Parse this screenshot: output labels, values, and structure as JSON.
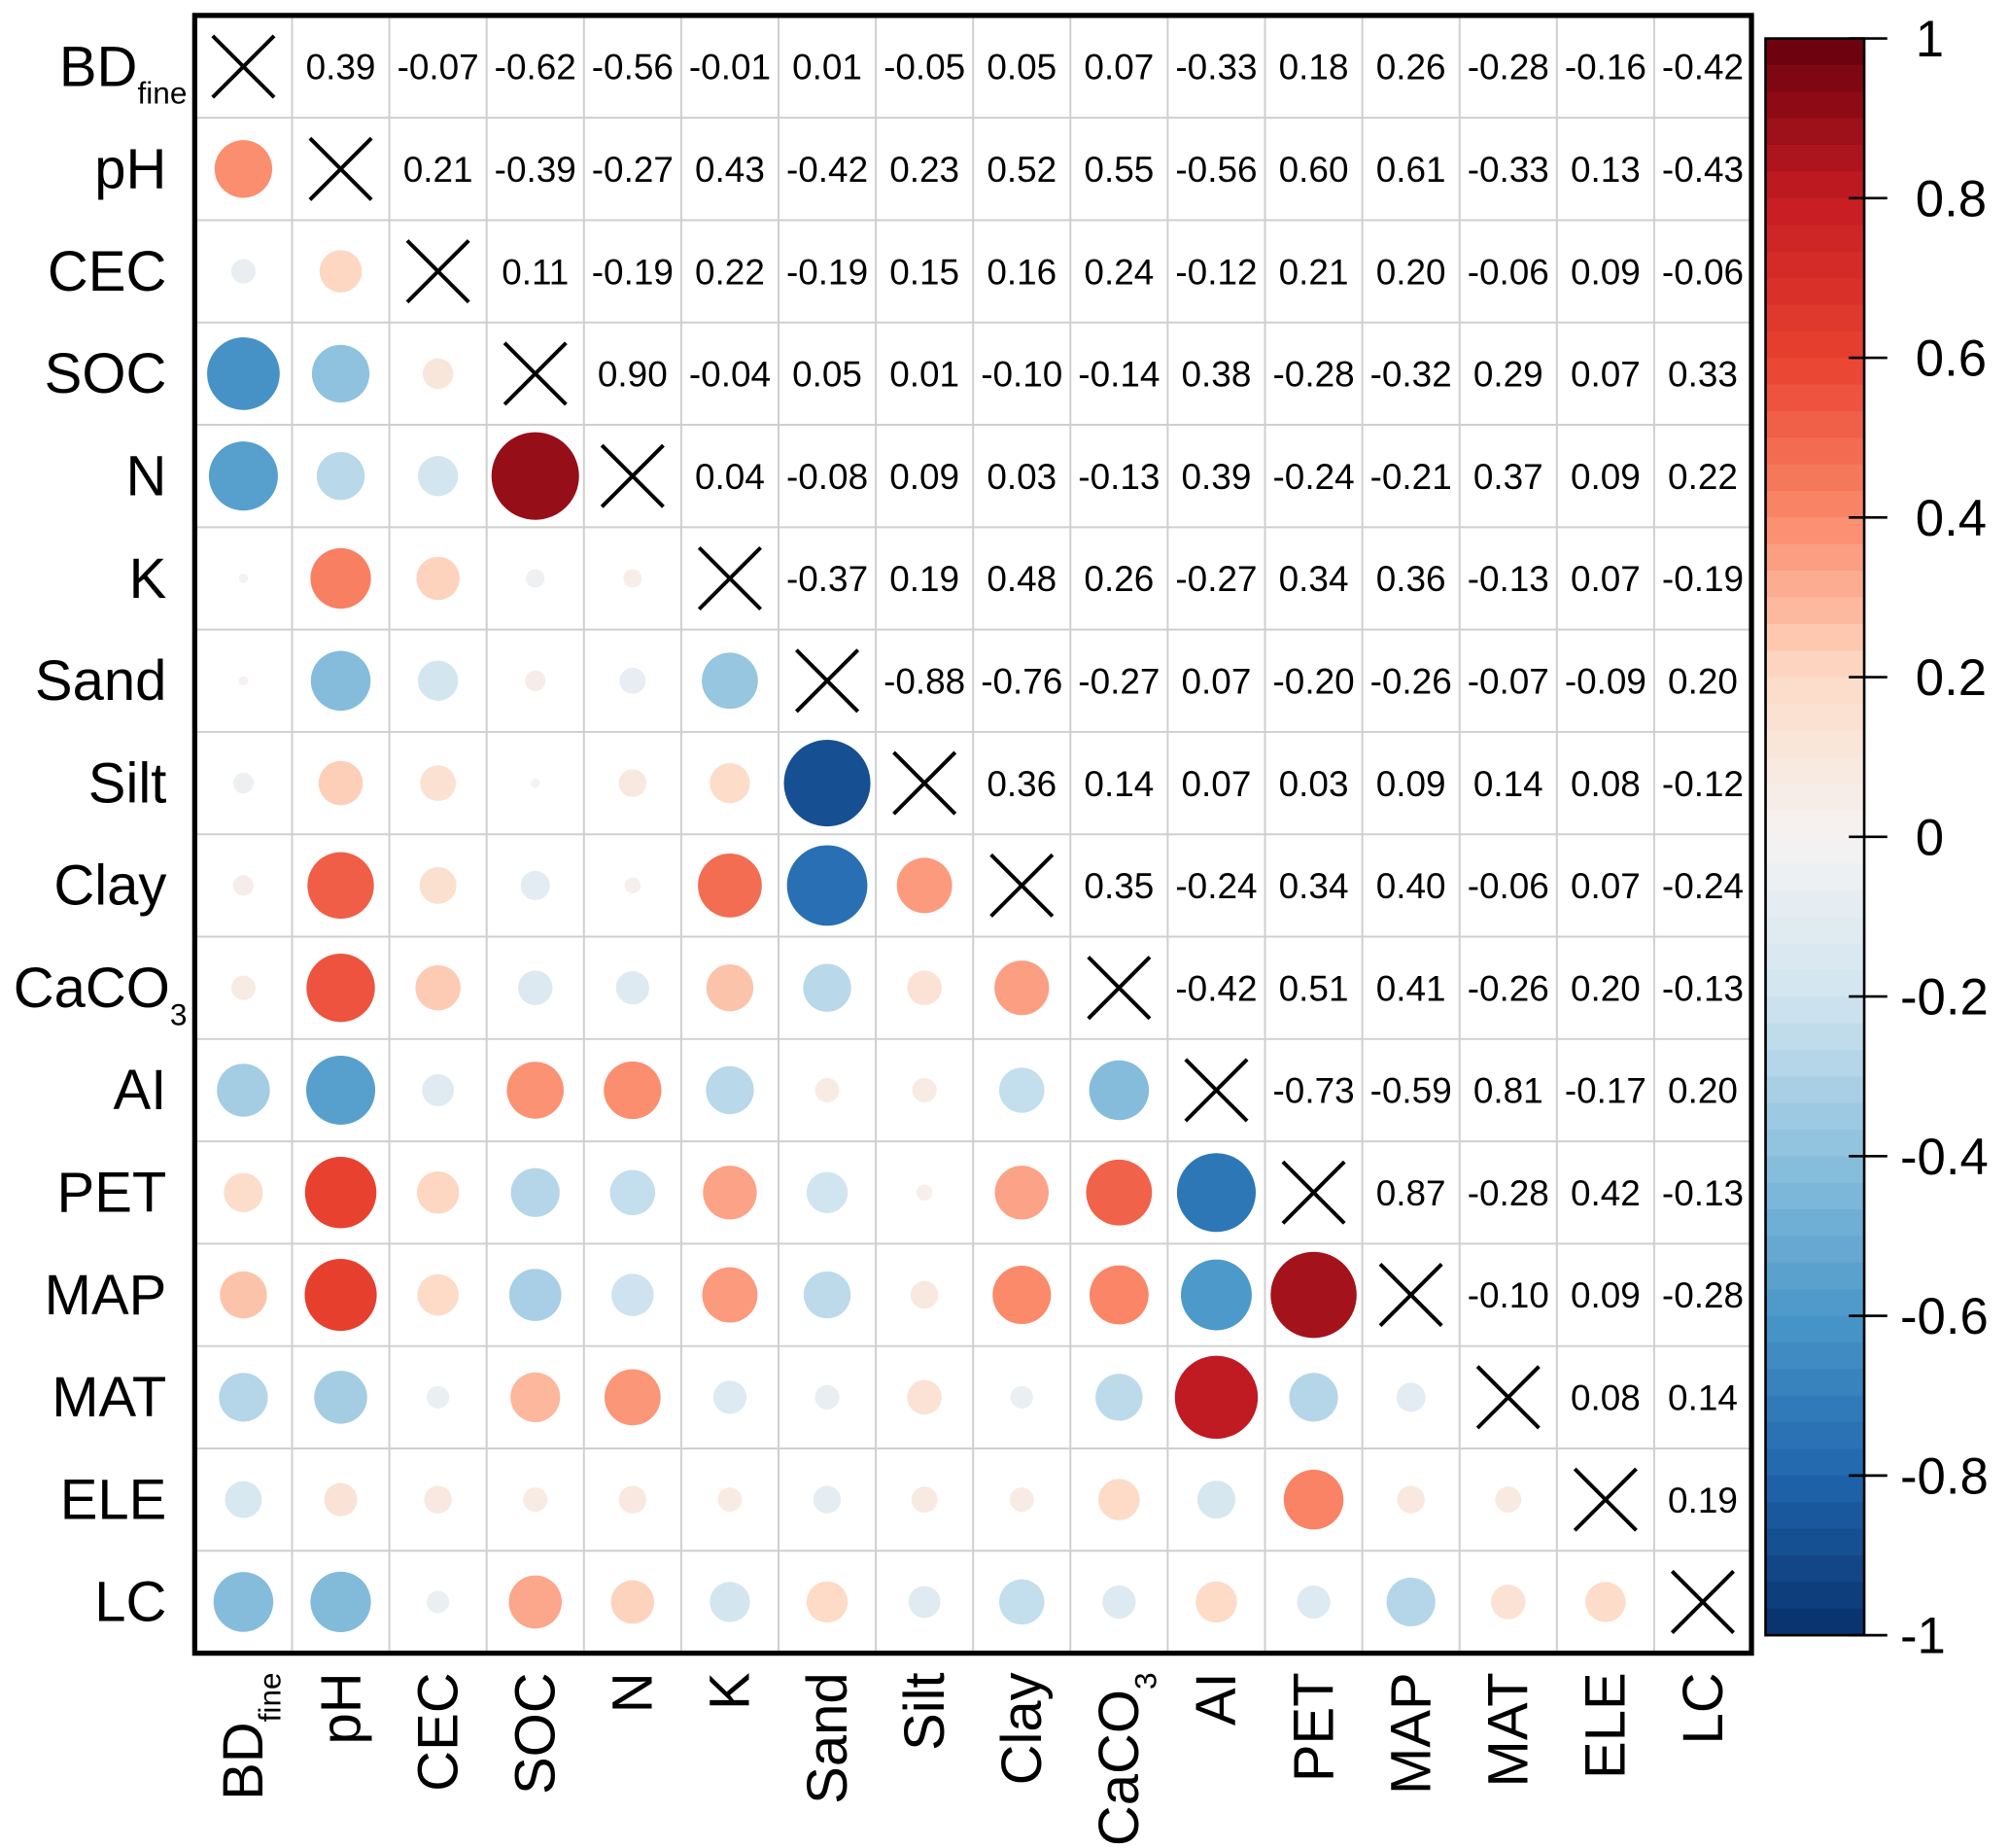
{
  "chart_data": {
    "type": "heatmap",
    "subtype": "correlation-matrix",
    "description_of_encoding": "upper triangle numeric labels, lower triangle circles sized and coloured by coefficient, diagonal crosses",
    "variables": [
      {
        "main": "BD",
        "sub": "fine"
      },
      {
        "main": "pH",
        "sub": ""
      },
      {
        "main": "CEC",
        "sub": ""
      },
      {
        "main": "SOC",
        "sub": ""
      },
      {
        "main": "N",
        "sub": ""
      },
      {
        "main": "K",
        "sub": ""
      },
      {
        "main": "Sand",
        "sub": ""
      },
      {
        "main": "Silt",
        "sub": ""
      },
      {
        "main": "Clay",
        "sub": ""
      },
      {
        "main": "CaCO",
        "sub": "3"
      },
      {
        "main": "AI",
        "sub": ""
      },
      {
        "main": "PET",
        "sub": ""
      },
      {
        "main": "MAP",
        "sub": ""
      },
      {
        "main": "MAT",
        "sub": ""
      },
      {
        "main": "ELE",
        "sub": ""
      },
      {
        "main": "LC",
        "sub": ""
      }
    ],
    "upper_triangle": [
      [
        "0.39",
        "-0.07",
        "-0.62",
        "-0.56",
        "-0.01",
        "0.01",
        "-0.05",
        "0.05",
        "0.07",
        "-0.33",
        "0.18",
        "0.26",
        "-0.28",
        "-0.16",
        "-0.42"
      ],
      [
        "0.21",
        "-0.39",
        "-0.27",
        "0.43",
        "-0.42",
        "0.23",
        "0.52",
        "0.55",
        "-0.56",
        "0.60",
        "0.61",
        "-0.33",
        "0.13",
        "-0.43"
      ],
      [
        "0.11",
        "-0.19",
        "0.22",
        "-0.19",
        "0.15",
        "0.16",
        "0.24",
        "-0.12",
        "0.21",
        "0.20",
        "-0.06",
        "0.09",
        "-0.06"
      ],
      [
        "0.90",
        "-0.04",
        "0.05",
        "0.01",
        "-0.10",
        "-0.14",
        "0.38",
        "-0.28",
        "-0.32",
        "0.29",
        "0.07",
        "0.33"
      ],
      [
        "0.04",
        "-0.08",
        "0.09",
        "0.03",
        "-0.13",
        "0.39",
        "-0.24",
        "-0.21",
        "0.37",
        "0.09",
        "0.22"
      ],
      [
        "-0.37",
        "0.19",
        "0.48",
        "0.26",
        "-0.27",
        "0.34",
        "0.36",
        "-0.13",
        "0.07",
        "-0.19"
      ],
      [
        "-0.88",
        "-0.76",
        "-0.27",
        "0.07",
        "-0.20",
        "-0.26",
        "-0.07",
        "-0.09",
        "0.20"
      ],
      [
        "0.36",
        "0.14",
        "0.07",
        "0.03",
        "0.09",
        "0.14",
        "0.08",
        "-0.12"
      ],
      [
        "0.35",
        "-0.24",
        "0.34",
        "0.40",
        "-0.06",
        "0.07",
        "-0.24"
      ],
      [
        "-0.42",
        "0.51",
        "0.41",
        "-0.26",
        "0.20",
        "-0.13"
      ],
      [
        "-0.73",
        "-0.59",
        "0.81",
        "-0.17",
        "0.20"
      ],
      [
        "0.87",
        "-0.28",
        "0.42",
        "-0.13"
      ],
      [
        "-0.10",
        "0.09",
        "-0.28"
      ],
      [
        "0.08",
        "0.14"
      ],
      [
        "0.19"
      ]
    ],
    "colorbar": {
      "range": [
        -1,
        1
      ],
      "ticks": [
        "1",
        "0.8",
        "0.6",
        "0.4",
        "0.2",
        "0",
        "-0.2",
        "-0.4",
        "-0.6",
        "-0.8",
        "-1"
      ],
      "colormap": [
        "#08306b",
        "#1f66ad",
        "#4a97c9",
        "#8cc0dd",
        "#d1e5f0",
        "#f5f3f3",
        "#fddbc7",
        "#fb8a6a",
        "#e8412f",
        "#c51b23",
        "#67000d"
      ]
    },
    "grid": true,
    "legend": "right"
  }
}
